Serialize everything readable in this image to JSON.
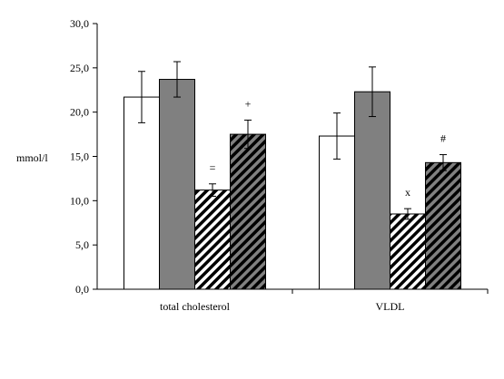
{
  "chart_data": {
    "type": "bar",
    "title": "",
    "xlabel": "",
    "ylabel": "mmol/l",
    "ylim": [
      0,
      30
    ],
    "ytick_step": 5,
    "ytick_labels": [
      "0,0",
      "5,0",
      "10,0",
      "15,0",
      "20,0",
      "25,0",
      "30,0"
    ],
    "categories": [
      "total cholesterol",
      "VLDL"
    ],
    "grid": false,
    "legend": "none",
    "series": [
      {
        "fill": "white",
        "color": "#ffffff",
        "values": [
          21.7,
          17.3
        ],
        "errors": [
          2.9,
          2.6
        ],
        "annotations": [
          "",
          ""
        ]
      },
      {
        "fill": "solid",
        "color": "#808080",
        "values": [
          23.7,
          22.3
        ],
        "errors": [
          2.0,
          2.8
        ],
        "annotations": [
          "",
          ""
        ]
      },
      {
        "fill": "hatch-white",
        "color": "#ffffff",
        "values": [
          11.2,
          8.5
        ],
        "errors": [
          0.7,
          0.6
        ],
        "annotations": [
          "=",
          "x"
        ]
      },
      {
        "fill": "hatch-gray",
        "color": "#808080",
        "values": [
          17.5,
          14.3
        ],
        "errors": [
          1.6,
          0.9
        ],
        "annotations": [
          "+",
          "#"
        ]
      }
    ]
  }
}
